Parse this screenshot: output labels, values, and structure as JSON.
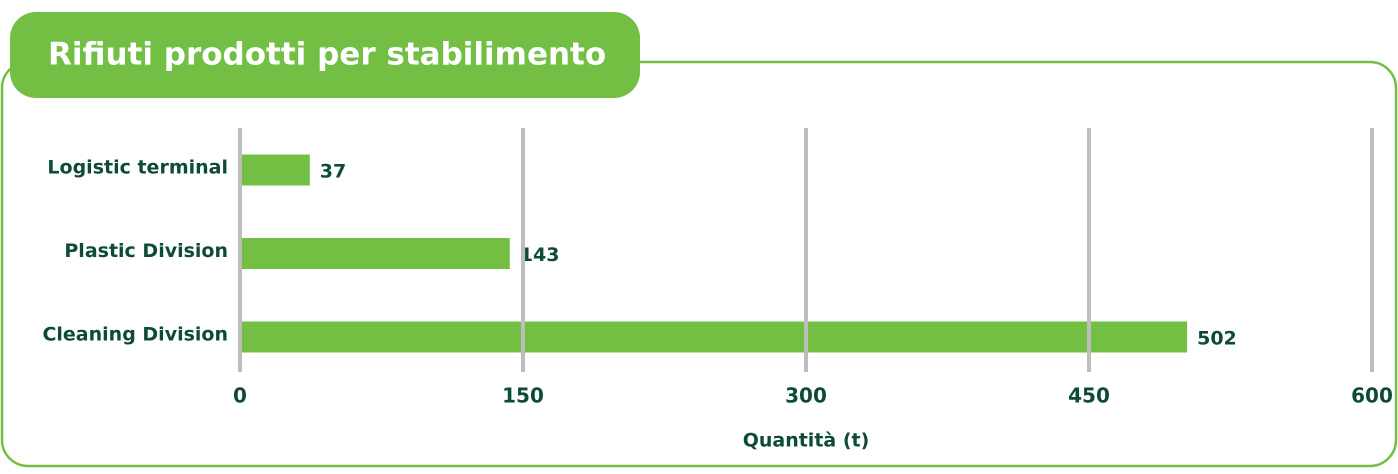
{
  "chart_data": {
    "type": "bar",
    "orientation": "horizontal",
    "title": "Rifiuti prodotti per stabilimento",
    "x_label": "Quantità (t)",
    "categories": [
      "Logistic terminal",
      "Plastic Division",
      "Cleaning Division"
    ],
    "values": [
      37,
      143,
      502
    ],
    "color": "#72bf44",
    "xlim": [
      0,
      600
    ],
    "xticks": [
      0,
      150,
      300,
      450,
      600
    ],
    "grid": true
  }
}
